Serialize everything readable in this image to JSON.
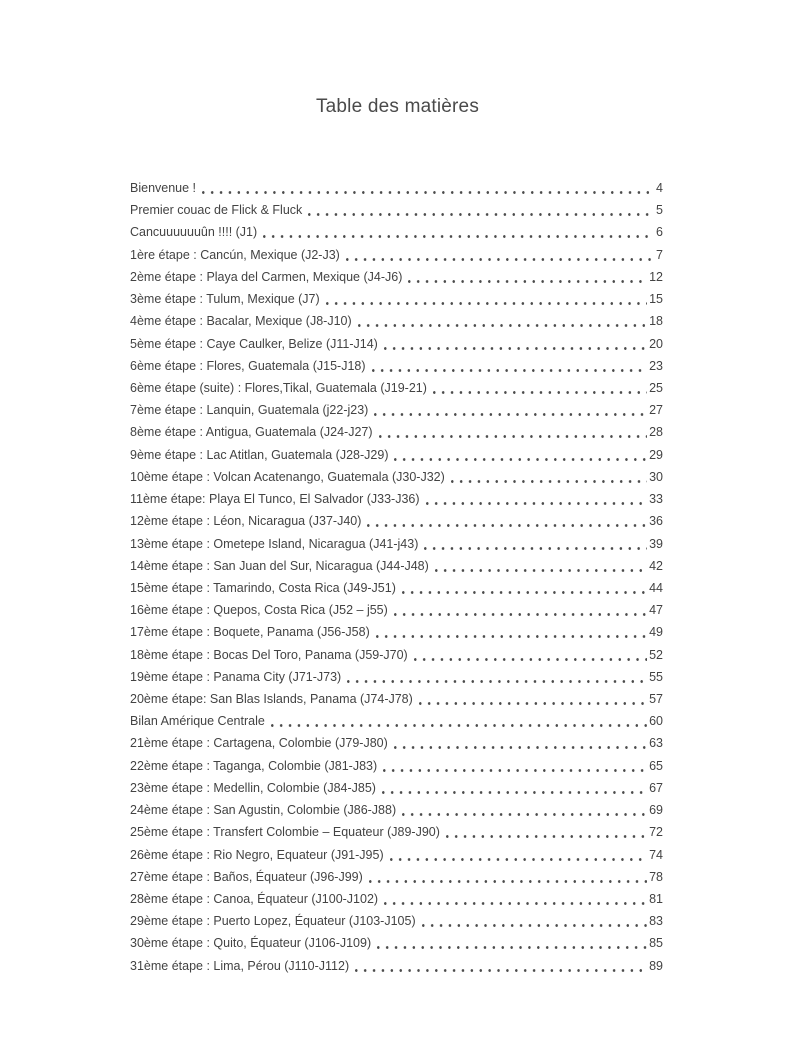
{
  "title": "Table des matières",
  "colors": {
    "text": "#434343",
    "title": "#4a4a4a",
    "background": "#ffffff"
  },
  "toc": {
    "entries": [
      {
        "label": "Bienvenue !",
        "page": "4"
      },
      {
        "label": "Premier couac de Flick & Fluck",
        "page": "5"
      },
      {
        "label": "Cancuuuuuuûn !!!! (J1)",
        "page": "6"
      },
      {
        "label": "1ère étape : Cancún, Mexique (J2-J3)",
        "page": "7"
      },
      {
        "label": "2ème étape : Playa del Carmen, Mexique (J4-J6)",
        "page": "12"
      },
      {
        "label": "3ème étape : Tulum, Mexique (J7)",
        "page": "15"
      },
      {
        "label": "4ème étape : Bacalar, Mexique (J8-J10)",
        "page": "18"
      },
      {
        "label": "5ème étape : Caye Caulker, Belize (J11-J14)",
        "page": "20"
      },
      {
        "label": "6ème étape : Flores, Guatemala (J15-J18)",
        "page": "23"
      },
      {
        "label": "6ème étape (suite) : Flores,Tikal, Guatemala (J19-21)",
        "page": "25"
      },
      {
        "label": "7ème étape : Lanquin, Guatemala (j22-j23)",
        "page": "27"
      },
      {
        "label": "8ème étape : Antigua, Guatemala (J24-J27)",
        "page": "28"
      },
      {
        "label": "9ème étape : Lac Atitlan, Guatemala (J28-J29)",
        "page": "29"
      },
      {
        "label": "10ème étape : Volcan Acatenango, Guatemala (J30-J32)",
        "page": "30"
      },
      {
        "label": "11ème étape: Playa El Tunco, El Salvador (J33-J36)",
        "page": "33"
      },
      {
        "label": "12ème étape : Léon, Nicaragua (J37-J40)",
        "page": "36"
      },
      {
        "label": "13ème étape : Ometepe Island, Nicaragua (J41-j43)",
        "page": "39"
      },
      {
        "label": "14ème étape : San Juan del Sur, Nicaragua (J44-J48)",
        "page": "42"
      },
      {
        "label": "15ème étape : Tamarindo, Costa Rica (J49-J51)",
        "page": "44"
      },
      {
        "label": "16ème étape : Quepos, Costa Rica (J52 – j55)",
        "page": "47"
      },
      {
        "label": "17ème étape : Boquete, Panama (J56-J58)",
        "page": "49"
      },
      {
        "label": "18ème étape : Bocas Del Toro, Panama (J59-J70)",
        "page": "52"
      },
      {
        "label": "19ème étape : Panama City (J71-J73)",
        "page": "55"
      },
      {
        "label": "20ème étape: San Blas Islands, Panama (J74-J78)",
        "page": "57"
      },
      {
        "label": "Bilan Amérique Centrale",
        "page": "60"
      },
      {
        "label": "21ème étape : Cartagena, Colombie (J79-J80)",
        "page": "63"
      },
      {
        "label": "22ème étape : Taganga, Colombie (J81-J83)",
        "page": "65"
      },
      {
        "label": "23ème étape : Medellin, Colombie (J84-J85)",
        "page": "67"
      },
      {
        "label": "24ème étape : San Agustin, Colombie (J86-J88)",
        "page": "69"
      },
      {
        "label": "25ème étape : Transfert Colombie – Equateur (J89-J90)",
        "page": "72"
      },
      {
        "label": "26ème étape : Rio Negro, Equateur (J91-J95)",
        "page": "74"
      },
      {
        "label": "27ème étape : Baños, Équateur (J96-J99)",
        "page": "78"
      },
      {
        "label": "28ème étape : Canoa, Équateur (J100-J102)",
        "page": "81"
      },
      {
        "label": "29ème étape : Puerto Lopez, Équateur (J103-J105)",
        "page": "83"
      },
      {
        "label": "30ème étape : Quito, Équateur (J106-J109)",
        "page": "85"
      },
      {
        "label": "31ème étape : Lima, Pérou (J110-J112)",
        "page": "89"
      }
    ]
  }
}
